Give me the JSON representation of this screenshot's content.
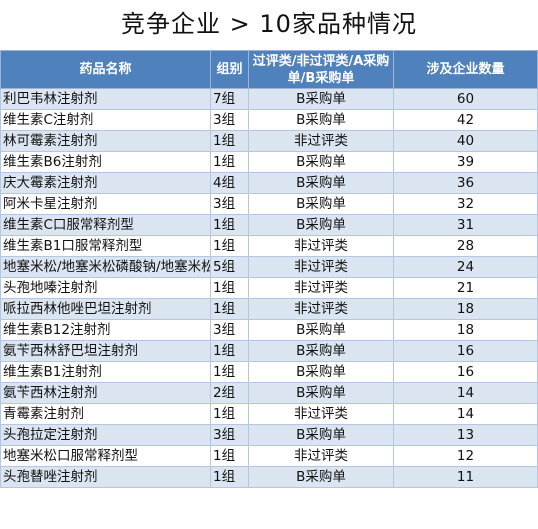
{
  "title": "竞争企业 > 10家品种情况",
  "headers": {
    "name": "药品名称",
    "group": "组别",
    "category": "过评类/非过评类/A采购单/B采购单",
    "count": "涉及企业数量"
  },
  "rows": [
    {
      "name": "利巴韦林注射剂",
      "group": "7组",
      "category": "B采购单",
      "count": "60"
    },
    {
      "name": "维生素C注射剂",
      "group": "3组",
      "category": "B采购单",
      "count": "42"
    },
    {
      "name": "林可霉素注射剂",
      "group": "1组",
      "category": "非过评类",
      "count": "40"
    },
    {
      "name": "维生素B6注射剂",
      "group": "1组",
      "category": "B采购单",
      "count": "39"
    },
    {
      "name": "庆大霉素注射剂",
      "group": "4组",
      "category": "B采购单",
      "count": "36"
    },
    {
      "name": "阿米卡星注射剂",
      "group": "3组",
      "category": "B采购单",
      "count": "32"
    },
    {
      "name": "维生素C口服常释剂型",
      "group": "1组",
      "category": "B采购单",
      "count": "31"
    },
    {
      "name": "维生素B1口服常释剂型",
      "group": "1组",
      "category": "非过评类",
      "count": "28"
    },
    {
      "name": "地塞米松/地塞米松磷酸钠/地塞米松棕榈酸酯注射剂",
      "group": "5组",
      "category": "非过评类",
      "count": "24"
    },
    {
      "name": "头孢地嗪注射剂",
      "group": "1组",
      "category": "非过评类",
      "count": "21"
    },
    {
      "name": "哌拉西林他唑巴坦注射剂",
      "group": "1组",
      "category": "非过评类",
      "count": "18"
    },
    {
      "name": "维生素B12注射剂",
      "group": "3组",
      "category": "B采购单",
      "count": "18"
    },
    {
      "name": "氨苄西林舒巴坦注射剂",
      "group": "1组",
      "category": "B采购单",
      "count": "16"
    },
    {
      "name": "维生素B1注射剂",
      "group": "1组",
      "category": "B采购单",
      "count": "16"
    },
    {
      "name": "氨苄西林注射剂",
      "group": "2组",
      "category": "B采购单",
      "count": "14"
    },
    {
      "name": "青霉素注射剂",
      "group": "1组",
      "category": "非过评类",
      "count": "14"
    },
    {
      "name": "头孢拉定注射剂",
      "group": "3组",
      "category": "B采购单",
      "count": "13"
    },
    {
      "name": "地塞米松口服常释剂型",
      "group": "1组",
      "category": "非过评类",
      "count": "12"
    },
    {
      "name": "头孢替唑注射剂",
      "group": "1组",
      "category": "B采购单",
      "count": "11"
    }
  ],
  "colors": {
    "header_bg": "#4f81bd",
    "row_alt_bg": "#dbe5f1"
  }
}
